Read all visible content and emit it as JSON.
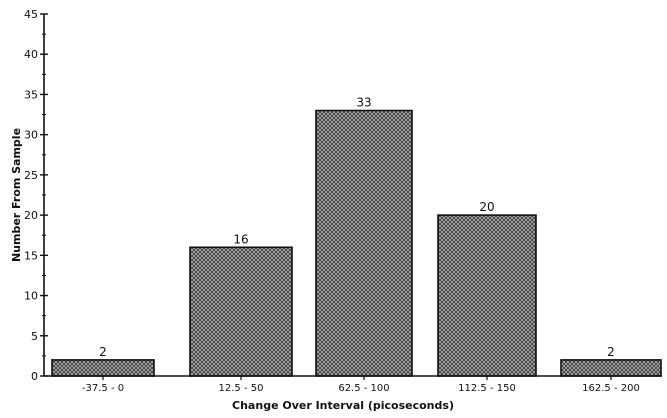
{
  "chart_data": {
    "type": "bar",
    "title": "",
    "xlabel": "Change Over Interval (picoseconds)",
    "ylabel": "Number From Sample",
    "categories": [
      "-37.5 - 0",
      "12.5 - 50",
      "62.5 - 100",
      "112.5 - 150",
      "162.5 - 200"
    ],
    "values": [
      2,
      16,
      33,
      20,
      2
    ],
    "data_labels": [
      "2",
      "16",
      "33",
      "20",
      "2"
    ],
    "ylim": [
      0,
      45
    ],
    "y_ticks": [
      "0",
      "5",
      "10",
      "15",
      "20",
      "25",
      "30",
      "35",
      "40",
      "45"
    ],
    "grid": false,
    "legend": "none",
    "colors": {
      "bar_fill": "#b5b5b5",
      "bar_hatch": "#3a3a3a",
      "axis": "#111111"
    }
  }
}
